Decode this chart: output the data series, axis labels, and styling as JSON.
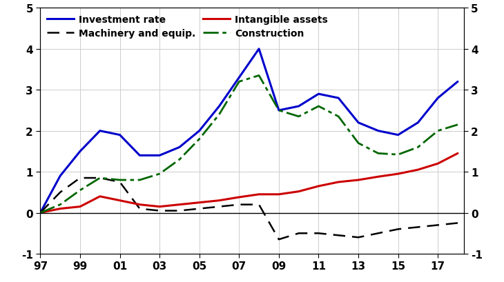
{
  "years": [
    1997,
    1998,
    1999,
    2000,
    2001,
    2002,
    2003,
    2004,
    2005,
    2006,
    2007,
    2008,
    2009,
    2010,
    2011,
    2012,
    2013,
    2014,
    2015,
    2016,
    2017,
    2018
  ],
  "investment_rate": [
    0.0,
    0.9,
    1.5,
    2.0,
    1.9,
    1.4,
    1.4,
    1.6,
    2.0,
    2.6,
    3.3,
    4.0,
    2.5,
    2.6,
    2.9,
    2.8,
    2.2,
    2.0,
    1.9,
    2.2,
    2.8,
    3.2
  ],
  "machinery_equip": [
    0.0,
    0.5,
    0.85,
    0.85,
    0.75,
    0.1,
    0.05,
    0.05,
    0.1,
    0.15,
    0.2,
    0.2,
    -0.65,
    -0.5,
    -0.5,
    -0.55,
    -0.6,
    -0.5,
    -0.4,
    -0.35,
    -0.3,
    -0.25
  ],
  "intangible_assets": [
    0.0,
    0.1,
    0.15,
    0.4,
    0.3,
    0.2,
    0.15,
    0.2,
    0.25,
    0.3,
    0.38,
    0.45,
    0.45,
    0.52,
    0.65,
    0.75,
    0.8,
    0.88,
    0.95,
    1.05,
    1.2,
    1.45
  ],
  "construction": [
    0.0,
    0.2,
    0.55,
    0.85,
    0.8,
    0.8,
    0.95,
    1.3,
    1.8,
    2.4,
    3.2,
    3.35,
    2.5,
    2.35,
    2.6,
    2.35,
    1.7,
    1.45,
    1.42,
    1.6,
    2.0,
    2.15
  ],
  "investment_rate_color": "#0000CC",
  "machinery_equip_color": "#000000",
  "intangible_assets_color": "#CC0000",
  "construction_color": "#006600",
  "ylim": [
    -1,
    5
  ],
  "yticks": [
    -1,
    0,
    1,
    2,
    3,
    4,
    5
  ],
  "xtick_labels": [
    "97",
    "99",
    "01",
    "03",
    "05",
    "07",
    "09",
    "11",
    "13",
    "15",
    "17"
  ],
  "xtick_positions": [
    1997,
    1999,
    2001,
    2003,
    2005,
    2007,
    2009,
    2011,
    2013,
    2015,
    2017
  ],
  "legend_investment_rate": "Investment rate",
  "legend_machinery": "Machinery and equip.",
  "legend_intangible": "Intangible assets",
  "legend_construction": "Construction",
  "background_color": "#FFFFFF",
  "grid_color": "#CCCCCC"
}
